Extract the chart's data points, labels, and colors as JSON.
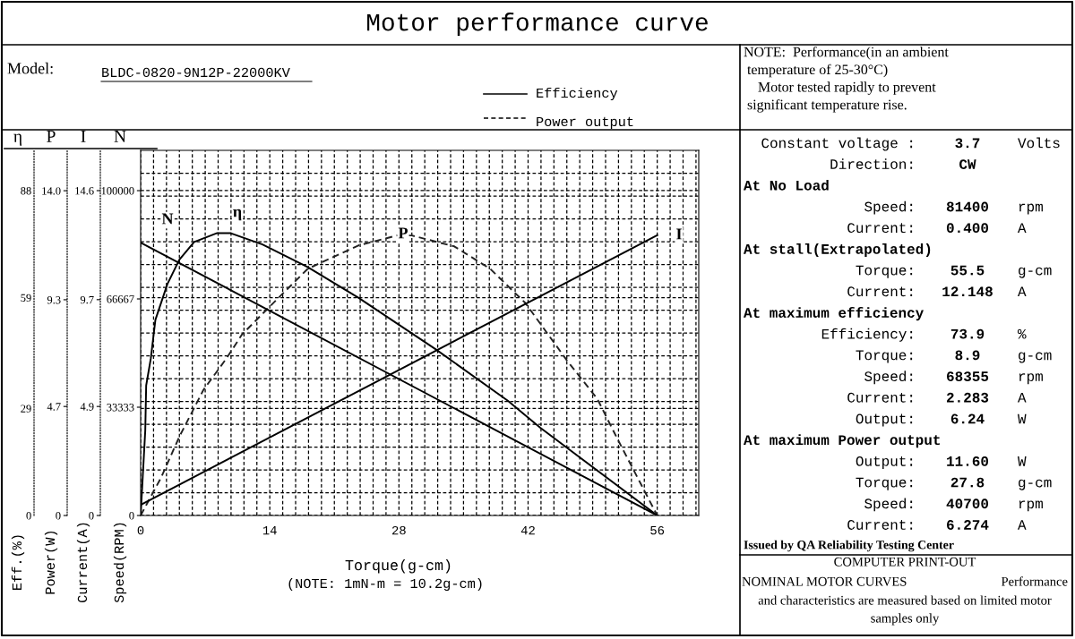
{
  "chart_data": [
    {
      "type": "line",
      "title": "Motor performance curve",
      "xlabel": "Torque(g-cm)",
      "ylabel": "Eff.(%)",
      "y2label": "Power(W)",
      "y3label": "Current(A)",
      "xlim": [
        0,
        60.5
      ],
      "xticks": [
        {
          "value": 0,
          "label": "0"
        },
        {
          "value": 1.4,
          "label": null
        },
        {
          "value": 2.8,
          "label": null
        },
        {
          "value": 4.2,
          "label": null
        },
        {
          "value": 5.6,
          "label": null
        },
        {
          "value": 7,
          "label": null
        },
        {
          "value": 8.4,
          "label": null
        },
        {
          "value": 9.8,
          "label": null
        },
        {
          "value": 11.2,
          "label": null
        },
        {
          "value": 12.6,
          "label": null
        },
        {
          "value": 14,
          "label": "14"
        },
        {
          "value": 15.4,
          "label": null
        },
        {
          "value": 16.8,
          "label": null
        },
        {
          "value": 18.2,
          "label": null
        },
        {
          "value": 19.6,
          "label": null
        },
        {
          "value": 21,
          "label": null
        },
        {
          "value": 22.4,
          "label": null
        },
        {
          "value": 23.8,
          "label": null
        },
        {
          "value": 25.2,
          "label": null
        },
        {
          "value": 26.6,
          "label": null
        },
        {
          "value": 28,
          "label": "28"
        },
        {
          "value": 29.4,
          "label": null
        },
        {
          "value": 30.8,
          "label": null
        },
        {
          "value": 32.2,
          "label": null
        },
        {
          "value": 33.6,
          "label": null
        },
        {
          "value": 35,
          "label": null
        },
        {
          "value": 36.4,
          "label": null
        },
        {
          "value": 37.8,
          "label": null
        },
        {
          "value": 39.2,
          "label": null
        },
        {
          "value": 40.6,
          "label": null
        },
        {
          "value": 42,
          "label": "42"
        },
        {
          "value": 43.4,
          "label": null
        },
        {
          "value": 44.8,
          "label": null
        },
        {
          "value": 46.2,
          "label": null
        },
        {
          "value": 47.6,
          "label": null
        },
        {
          "value": 49,
          "label": null
        },
        {
          "value": 50.4,
          "label": null
        },
        {
          "value": 51.8,
          "label": null
        },
        {
          "value": 53.2,
          "label": null
        },
        {
          "value": 54.6,
          "label": null
        },
        {
          "value": 56,
          "label": "56"
        },
        {
          "value": 57.4,
          "label": null
        },
        {
          "value": 58.8,
          "label": null
        },
        {
          "value": 60.2,
          "label": null
        }
      ],
      "ylim": [
        0,
        98.9
      ],
      "yticks": [
        0,
        {
          "value": 6.18,
          "label": null
        },
        {
          "value": 12.36,
          "label": null
        },
        {
          "value": 18.54,
          "label": null
        },
        {
          "value": 24.72,
          "label": null
        },
        29,
        {
          "value": 30.9,
          "label": null
        },
        {
          "value": 37.08,
          "label": null
        },
        {
          "value": 43.26,
          "label": null
        },
        {
          "value": 49.44,
          "label": null
        },
        {
          "value": 55.62,
          "label": null
        },
        59,
        {
          "value": 61.8,
          "label": null
        },
        {
          "value": 67.98,
          "label": null
        },
        {
          "value": 74.16,
          "label": null
        },
        {
          "value": 80.34,
          "label": null
        },
        {
          "value": 86.52,
          "label": null
        },
        88,
        {
          "value": 92.7,
          "label": null
        }
      ],
      "y2lim": [
        0,
        15.74
      ],
      "y2ticks": [
        0,
        4.7,
        9.3,
        {
          "value": 14.0,
          "label": "14.0"
        }
      ],
      "y3lim": [
        0,
        16.41
      ],
      "y3ticks": [
        0,
        4.9,
        9.7,
        14.6
      ],
      "grid": true,
      "marker": "none",
      "series": [
        {
          "name": "η",
          "axis": "y",
          "color": "#000000",
          "line_style": "solid",
          "x": [
            0,
            0.5,
            0.6,
            1.1,
            1.6,
            2.9,
            4.2,
            5.8,
            8.3,
            9.7,
            13.2,
            18.1,
            23.6,
            32.0,
            39.8,
            43.3,
            56
          ],
          "values": [
            0,
            23,
            35.2,
            42.5,
            53.0,
            62.7,
            69.3,
            74.1,
            76.5,
            76.5,
            73.4,
            67.3,
            59.0,
            45.0,
            31.1,
            23.8,
            0
          ]
        },
        {
          "name": "P",
          "axis": "y2",
          "color": "#222222",
          "line_style": "dashed",
          "x": [
            0,
            2.2,
            4.2,
            6.8,
            9.3,
            11.0,
            13.9,
            18.1,
            23.6,
            27.8,
            29.4,
            34.0,
            37.9,
            41.7,
            46.2,
            49.5,
            51.7,
            56
          ],
          "values": [
            0,
            1.62,
            3.4,
            5.41,
            6.77,
            7.81,
            8.97,
            10.63,
            11.64,
            12.07,
            12.07,
            11.6,
            10.63,
            9.16,
            6.69,
            5.03,
            3.29,
            0
          ]
        },
        {
          "name": "I",
          "axis": "y3",
          "color": "#000000",
          "line_style": "solid",
          "x": [
            0,
            56
          ],
          "values": [
            0.48,
            12.6
          ]
        }
      ],
      "annotations": [
        "Model:",
        "BLDC-0820-9N12P-22000KV",
        "Efficiency",
        "Power output",
        "NOTE:  Performance(in an ambient\n temperature of 25-30°C)\n    Motor tested rapidly to prevent\n significant temperature rise.",
        "Constant voltage :",
        "3.7",
        "Volts",
        "Direction:",
        "CW",
        "At No Load",
        "Speed:",
        "81400",
        "rpm",
        "Current:",
        "0.400",
        "A",
        "At stall(Extrapolated)",
        "Torque:",
        "55.5",
        "g-cm",
        "Current:",
        "12.148",
        "A",
        "At maximum efficiency",
        "Efficiency:",
        "73.9",
        "%",
        "Torque:",
        "8.9",
        "g-cm",
        "Speed:",
        "68355",
        "rpm",
        "Current:",
        "2.283",
        "A",
        "Output:",
        "6.24",
        "W",
        "At maximum Power output",
        "Output:",
        "11.60",
        "W",
        "Torque:",
        "27.8",
        "g-cm",
        "Speed:",
        "40700",
        "rpm",
        "Current:",
        "6.274",
        "A",
        "Issued by QA Reliability Testing Center",
        "COMPUTER PRINT-OUT",
        "NOMINAL MOTOR CURVES",
        "Performance",
        "and characteristics are measured based on limited motor",
        "samples only",
        "(NOTE: 1mN-m = 10.2g-cm)",
        "η",
        "P",
        "I",
        "N"
      ]
    },
    {
      "type": "line",
      "ylabel": "Speed(RPM)",
      "xlim": [
        0,
        60.5
      ],
      "ylim": [
        0,
        112400
      ],
      "yticks": [
        0,
        33333,
        66667,
        100000
      ],
      "tick_labels": "y",
      "series": [
        {
          "name": "N",
          "axis": "y",
          "color": "#000000",
          "line_style": "solid",
          "x": [
            0,
            56
          ],
          "values": [
            84000,
            0
          ]
        }
      ]
    }
  ]
}
